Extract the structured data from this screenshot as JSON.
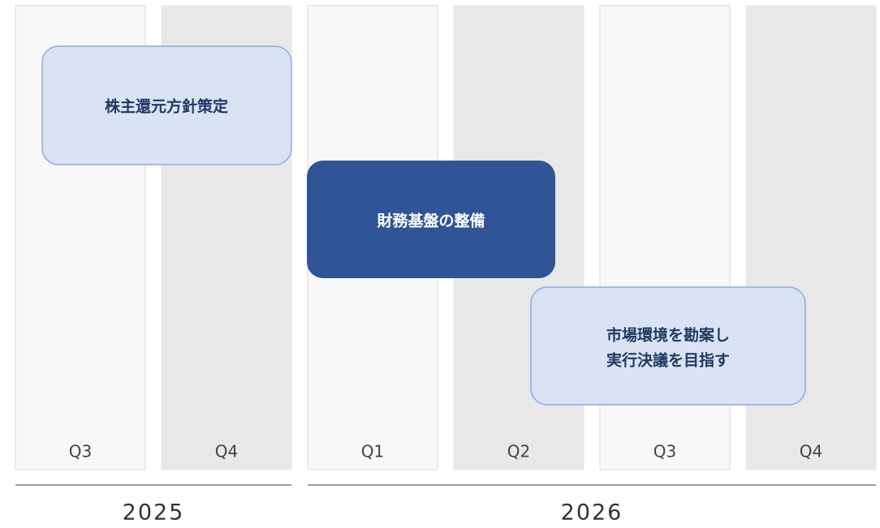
{
  "quarters": [
    "Q3",
    "Q4",
    "Q1",
    "Q2",
    "Q3",
    "Q4"
  ],
  "years": [
    "2025",
    "2026"
  ],
  "tasks": [
    {
      "lines": [
        "株主還元方針策定"
      ]
    },
    {
      "lines": [
        "財務基盤の整備"
      ]
    },
    {
      "lines": [
        "市場環境を勘案し",
        "実行決議を目指す"
      ]
    }
  ]
}
